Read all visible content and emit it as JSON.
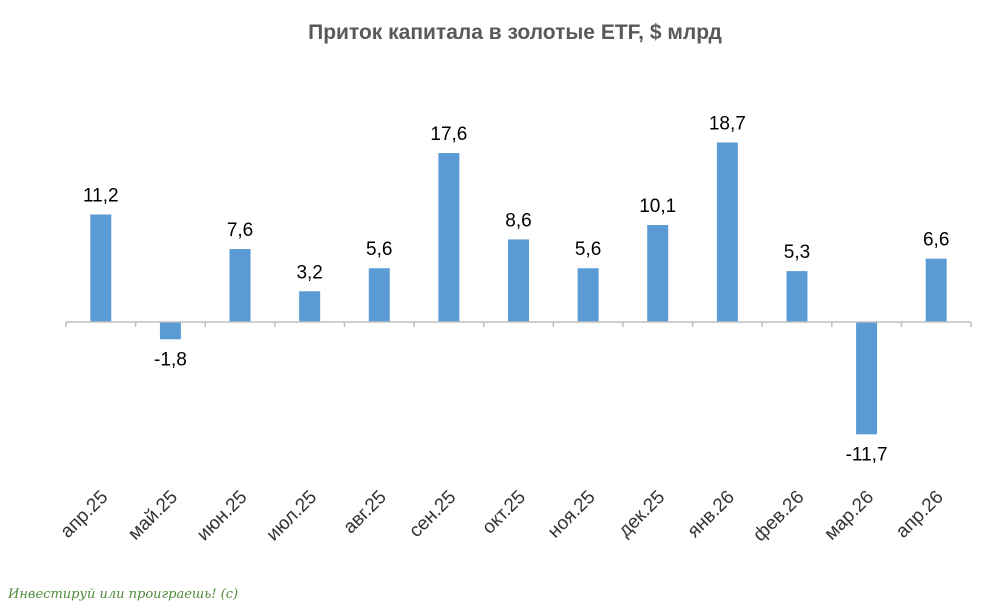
{
  "chart_data": {
    "type": "bar",
    "title": "Приток капитала в золотые ETF, $ млрд",
    "categories": [
      "апр.25",
      "май.25",
      "июн.25",
      "июл.25",
      "авг.25",
      "сен.25",
      "окт.25",
      "ноя.25",
      "дек.25",
      "янв.26",
      "фев.26",
      "мар.26",
      "апр.26"
    ],
    "values": [
      11.2,
      -1.8,
      7.6,
      3.2,
      5.6,
      17.6,
      8.6,
      5.6,
      10.1,
      18.7,
      5.3,
      -11.7,
      6.6
    ],
    "value_labels": [
      "11,2",
      "-1,8",
      "7,6",
      "3,2",
      "5,6",
      "17,6",
      "8,6",
      "5,6",
      "10,1",
      "18,7",
      "5,3",
      "-11,7",
      "6,6"
    ],
    "ylim": [
      -13,
      20
    ],
    "grid": false,
    "legend": "none",
    "bar_color": "#5b9bd5",
    "axis_color": "#bfbfbf"
  },
  "watermark": "Инвестируй или проиграешь! (с)"
}
